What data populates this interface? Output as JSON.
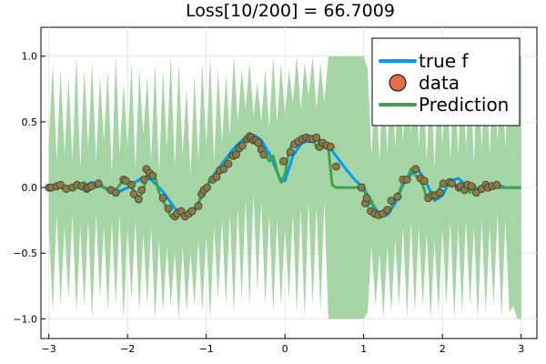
{
  "chart_data": {
    "type": "line",
    "title": "Loss[10/200] = 66.7009",
    "xlabel": "",
    "ylabel": "",
    "xlim": [
      -3.1,
      3.2
    ],
    "ylim": [
      -1.15,
      1.22
    ],
    "xticks": [
      -3,
      -2,
      -1,
      0,
      1,
      2,
      3
    ],
    "xtick_labels": [
      "−3",
      "−2",
      "−1",
      "0",
      "1",
      "2",
      "3"
    ],
    "yticks": [
      -1.0,
      -0.5,
      0.0,
      0.5,
      1.0
    ],
    "ytick_labels": [
      "−1.0",
      "−0.5",
      "0.0",
      "0.5",
      "1.0"
    ],
    "grid": true,
    "legend_position": "top-right",
    "colors": {
      "true_f": "#009af9",
      "data": "#e26f46",
      "prediction": "#3da44d",
      "band": "#a6d5a5"
    },
    "series": [
      {
        "name": "true f",
        "kind": "line",
        "x": [
          -3.0,
          -2.8,
          -2.6,
          -2.45,
          -2.3,
          -2.1,
          -2.0,
          -1.9,
          -1.8,
          -1.7,
          -1.55,
          -1.4,
          -1.25,
          -1.1,
          -1.0,
          -0.9,
          -0.8,
          -0.7,
          -0.6,
          -0.5,
          -0.4,
          -0.3,
          -0.2,
          -0.1,
          -0.05,
          0.0,
          0.1,
          0.2,
          0.3,
          0.4,
          0.5,
          0.6,
          0.7,
          0.8,
          0.9,
          1.0,
          1.1,
          1.2,
          1.3,
          1.4,
          1.5,
          1.6,
          1.7,
          1.8,
          1.9,
          2.0,
          2.1,
          2.2,
          2.3,
          2.4,
          2.5,
          2.6,
          2.7,
          2.8,
          3.0
        ],
        "values": [
          0.0,
          0.01,
          0.0,
          0.04,
          0.0,
          -0.03,
          0.0,
          0.04,
          0.08,
          0.06,
          -0.03,
          -0.16,
          -0.22,
          -0.12,
          0.0,
          0.1,
          0.18,
          0.26,
          0.33,
          0.38,
          0.4,
          0.36,
          0.26,
          0.12,
          0.05,
          0.05,
          0.24,
          0.33,
          0.36,
          0.36,
          0.34,
          0.28,
          0.2,
          0.12,
          0.05,
          0.0,
          -0.12,
          -0.2,
          -0.21,
          -0.12,
          0.02,
          0.1,
          0.13,
          0.03,
          -0.1,
          -0.06,
          0.05,
          0.07,
          0.02,
          -0.02,
          0.01,
          -0.01,
          0.02,
          0.0,
          0.0
        ]
      },
      {
        "name": "data",
        "kind": "scatter",
        "x": [
          -3.0,
          -2.97,
          -2.9,
          -2.85,
          -2.78,
          -2.7,
          -2.64,
          -2.58,
          -2.52,
          -2.5,
          -2.46,
          -2.37,
          -2.21,
          -2.15,
          -2.05,
          -2.02,
          -1.95,
          -1.92,
          -1.86,
          -1.82,
          -1.79,
          -1.76,
          -1.72,
          -1.68,
          -1.55,
          -1.48,
          -1.4,
          -1.37,
          -1.32,
          -1.27,
          -1.22,
          -1.18,
          -1.1,
          -1.06,
          -1.03,
          -0.99,
          -0.92,
          -0.87,
          -0.83,
          -0.78,
          -0.72,
          -0.66,
          -0.62,
          -0.58,
          -0.54,
          -0.48,
          -0.45,
          -0.43,
          -0.4,
          -0.37,
          -0.34,
          -0.3,
          -0.27,
          -0.02,
          0.07,
          0.12,
          0.17,
          0.22,
          0.27,
          0.31,
          0.35,
          0.4,
          0.44,
          0.48,
          0.53,
          0.58,
          0.65,
          0.97,
          1.02,
          1.04,
          1.09,
          1.14,
          1.19,
          1.24,
          1.3,
          1.35,
          1.43,
          1.5,
          1.55,
          1.66,
          1.72,
          1.77,
          1.82,
          1.87,
          1.91,
          1.97,
          2.01,
          2.09,
          2.12,
          2.21,
          2.23,
          2.28,
          2.32,
          2.37,
          2.43,
          2.5,
          2.55,
          2.58,
          2.63,
          2.69
        ],
        "values": [
          0.0,
          0.0,
          0.01,
          0.02,
          -0.01,
          0.0,
          0.02,
          0.01,
          -0.01,
          0.0,
          0.01,
          0.03,
          -0.02,
          -0.04,
          0.06,
          0.05,
          0.02,
          -0.05,
          -0.09,
          -0.02,
          0.06,
          0.14,
          0.11,
          0.09,
          -0.08,
          -0.16,
          -0.22,
          -0.2,
          -0.18,
          -0.22,
          -0.2,
          -0.18,
          -0.14,
          -0.05,
          -0.02,
          0.0,
          0.06,
          0.08,
          0.13,
          0.14,
          0.18,
          0.24,
          0.25,
          0.3,
          0.32,
          0.37,
          0.39,
          0.38,
          0.36,
          0.36,
          0.34,
          0.29,
          0.25,
          0.2,
          0.27,
          0.33,
          0.35,
          0.37,
          0.38,
          0.37,
          0.37,
          0.38,
          0.31,
          0.34,
          0.32,
          0.31,
          0.16,
          0.0,
          -0.12,
          -0.08,
          -0.18,
          -0.2,
          -0.21,
          -0.2,
          -0.17,
          -0.1,
          -0.07,
          0.06,
          0.06,
          0.14,
          0.07,
          0.05,
          -0.08,
          -0.06,
          -0.06,
          -0.04,
          0.03,
          0.04,
          0.03,
          0.0,
          0.01,
          -0.02,
          0.02,
          0.01,
          -0.04,
          -0.01,
          0.02,
          0.0,
          0.01,
          0.02
        ]
      },
      {
        "name": "Prediction",
        "kind": "line",
        "x": [
          -3.0,
          -2.95,
          -2.9,
          -2.85,
          -2.8,
          -2.75,
          -2.7,
          -2.65,
          -2.6,
          -2.55,
          -2.5,
          -2.45,
          -2.4,
          -2.35,
          -2.3,
          -2.25,
          -2.2,
          -2.15,
          -2.1,
          -2.05,
          -2.0,
          -1.95,
          -1.9,
          -1.85,
          -1.8,
          -1.75,
          -1.7,
          -1.65,
          -1.6,
          -1.55,
          -1.5,
          -1.45,
          -1.4,
          -1.35,
          -1.3,
          -1.25,
          -1.2,
          -1.15,
          -1.1,
          -1.05,
          -1.0,
          -0.95,
          -0.9,
          -0.85,
          -0.8,
          -0.75,
          -0.7,
          -0.65,
          -0.6,
          -0.55,
          -0.5,
          -0.45,
          -0.4,
          -0.35,
          -0.3,
          -0.25,
          -0.2,
          -0.15,
          -0.1,
          -0.05,
          0.0,
          0.05,
          0.1,
          0.15,
          0.2,
          0.25,
          0.3,
          0.35,
          0.4,
          0.45,
          0.5,
          0.55,
          0.6,
          0.65,
          0.7,
          0.75,
          0.8,
          0.85,
          0.9,
          0.95,
          1.0,
          1.05,
          1.1,
          1.15,
          1.2,
          1.25,
          1.3,
          1.35,
          1.4,
          1.45,
          1.5,
          1.55,
          1.6,
          1.65,
          1.7,
          1.75,
          1.8,
          1.85,
          1.9,
          1.95,
          2.0,
          2.05,
          2.1,
          2.15,
          2.2,
          2.25,
          2.3,
          2.35,
          2.4,
          2.45,
          2.5,
          2.55,
          2.6,
          2.65,
          2.7,
          2.75,
          2.8,
          2.85,
          2.9,
          2.95,
          3.0
        ],
        "values": [
          0.0,
          0.0,
          0.02,
          0.0,
          -0.01,
          0.0,
          0.02,
          0.0,
          0.01,
          0.04,
          0.0,
          0.02,
          0.0,
          0.03,
          0.0,
          -0.02,
          -0.04,
          -0.02,
          0.02,
          0.06,
          0.04,
          0.0,
          -0.04,
          -0.08,
          -0.02,
          0.1,
          0.12,
          0.08,
          -0.04,
          -0.1,
          -0.16,
          -0.22,
          -0.2,
          -0.17,
          -0.22,
          -0.2,
          -0.16,
          -0.18,
          -0.12,
          -0.04,
          0.0,
          0.06,
          0.08,
          0.13,
          0.16,
          0.2,
          0.24,
          0.26,
          0.3,
          0.34,
          0.37,
          0.4,
          0.38,
          0.36,
          0.33,
          0.26,
          0.2,
          0.24,
          0.12,
          0.04,
          0.1,
          0.28,
          0.34,
          0.36,
          0.37,
          0.38,
          0.36,
          0.38,
          0.3,
          0.36,
          0.33,
          0.3,
          0.02,
          0.0,
          0.0,
          0.0,
          0.0,
          0.0,
          0.0,
          0.0,
          0.02,
          -0.14,
          -0.1,
          -0.2,
          -0.22,
          -0.18,
          -0.2,
          -0.16,
          -0.06,
          -0.04,
          0.04,
          0.06,
          0.14,
          0.1,
          0.06,
          0.02,
          -0.08,
          -0.04,
          -0.06,
          -0.02,
          0.04,
          0.0,
          0.06,
          0.02,
          0.0,
          -0.02,
          0.02,
          -0.04,
          0.02,
          -0.02,
          0.0,
          0.02,
          0.0,
          0.01,
          0.0,
          0.0,
          0.0,
          0.0,
          0.0,
          0.0,
          0.0
        ]
      }
    ],
    "band": {
      "kind": "area",
      "x": [
        -3.0,
        -2.95,
        -2.9,
        -2.85,
        -2.8,
        -2.75,
        -2.7,
        -2.65,
        -2.6,
        -2.55,
        -2.5,
        -2.45,
        -2.4,
        -2.35,
        -2.3,
        -2.25,
        -2.2,
        -2.15,
        -2.1,
        -2.05,
        -2.0,
        -1.95,
        -1.9,
        -1.85,
        -1.8,
        -1.75,
        -1.7,
        -1.65,
        -1.6,
        -1.55,
        -1.5,
        -1.45,
        -1.4,
        -1.35,
        -1.3,
        -1.25,
        -1.2,
        -1.15,
        -1.1,
        -1.05,
        -1.0,
        -0.95,
        -0.9,
        -0.85,
        -0.8,
        -0.75,
        -0.7,
        -0.65,
        -0.6,
        -0.55,
        -0.5,
        -0.45,
        -0.4,
        -0.35,
        -0.3,
        -0.25,
        -0.2,
        -0.15,
        -0.1,
        -0.05,
        0.0,
        0.05,
        0.1,
        0.15,
        0.2,
        0.25,
        0.3,
        0.35,
        0.4,
        0.45,
        0.5,
        0.55,
        0.6,
        0.65,
        0.7,
        0.75,
        0.8,
        0.85,
        0.9,
        0.95,
        1.0,
        1.05,
        1.1,
        1.15,
        1.2,
        1.25,
        1.3,
        1.35,
        1.4,
        1.45,
        1.5,
        1.55,
        1.6,
        1.65,
        1.7,
        1.75,
        1.8,
        1.85,
        1.9,
        1.95,
        2.0,
        2.05,
        2.1,
        2.15,
        2.2,
        2.25,
        2.3,
        2.35,
        2.4,
        2.45,
        2.5,
        2.55,
        2.6,
        2.65,
        2.7,
        2.75,
        2.8,
        2.85,
        2.9,
        2.95,
        3.0
      ],
      "upper": [
        0.35,
        0.95,
        0.2,
        0.9,
        0.25,
        0.85,
        0.2,
        1.0,
        0.15,
        0.9,
        0.3,
        0.95,
        0.2,
        0.85,
        0.35,
        0.9,
        0.1,
        1.0,
        0.25,
        0.8,
        0.3,
        0.95,
        0.15,
        0.9,
        0.4,
        0.85,
        0.2,
        0.95,
        0.1,
        0.9,
        0.3,
        1.0,
        0.15,
        0.95,
        0.25,
        0.75,
        0.1,
        0.85,
        0.2,
        0.95,
        0.3,
        1.0,
        0.2,
        0.9,
        0.35,
        0.85,
        0.4,
        1.0,
        0.5,
        0.9,
        0.6,
        0.95,
        0.55,
        0.8,
        0.5,
        0.9,
        0.45,
        1.0,
        0.5,
        0.95,
        0.55,
        0.9,
        0.65,
        1.0,
        0.6,
        0.95,
        0.7,
        1.0,
        0.6,
        0.95,
        0.65,
        1.0,
        1.0,
        1.0,
        1.0,
        1.0,
        1.0,
        1.0,
        1.0,
        1.0,
        1.0,
        0.9,
        0.25,
        0.85,
        0.2,
        0.95,
        0.25,
        1.0,
        0.3,
        0.9,
        0.35,
        0.95,
        0.4,
        1.0,
        0.3,
        0.9,
        0.2,
        0.95,
        0.15,
        0.9,
        0.3,
        1.0,
        0.2,
        0.85,
        0.25,
        0.95,
        0.3,
        0.9,
        0.2,
        1.0,
        0.3,
        0.95,
        0.25,
        0.9,
        0.35,
        0.95,
        0.3,
        1.0,
        0.85,
        1.0,
        1.0
      ],
      "lower": [
        -0.3,
        -0.95,
        -0.2,
        -0.9,
        -0.3,
        -0.85,
        -0.2,
        -0.95,
        -0.3,
        -0.9,
        -0.25,
        -1.0,
        -0.2,
        -0.85,
        -0.3,
        -0.95,
        -0.25,
        -0.9,
        -0.2,
        -1.0,
        -0.3,
        -0.85,
        -0.25,
        -0.95,
        -0.35,
        -0.9,
        -0.3,
        -1.0,
        -0.4,
        -0.95,
        -0.45,
        -0.9,
        -0.5,
        -1.0,
        -0.45,
        -0.95,
        -0.5,
        -0.9,
        -0.4,
        -0.95,
        -0.35,
        -1.0,
        -0.3,
        -0.85,
        -0.25,
        -0.9,
        -0.2,
        -0.95,
        -0.15,
        -0.85,
        -0.1,
        -0.9,
        -0.05,
        -0.8,
        -0.1,
        -0.9,
        -0.2,
        -0.95,
        -0.25,
        -0.9,
        -0.3,
        -0.85,
        -0.2,
        -0.95,
        -0.15,
        -1.0,
        -0.1,
        -0.9,
        -0.15,
        -0.95,
        -0.1,
        -1.0,
        -1.0,
        -1.0,
        -1.0,
        -1.0,
        -1.0,
        -1.0,
        -1.0,
        -1.0,
        -1.0,
        -0.95,
        -0.45,
        -0.9,
        -0.5,
        -1.0,
        -0.45,
        -0.95,
        -0.4,
        -0.9,
        -0.3,
        -1.0,
        -0.25,
        -0.95,
        -0.3,
        -0.9,
        -0.35,
        -1.0,
        -0.4,
        -0.95,
        -0.3,
        -0.9,
        -0.25,
        -1.0,
        -0.3,
        -0.95,
        -0.25,
        -0.9,
        -0.3,
        -1.0,
        -0.25,
        -0.95,
        -0.3,
        -0.9,
        -0.2,
        -1.0,
        -0.25,
        -0.95,
        -0.9,
        -1.0,
        -1.0
      ]
    }
  }
}
